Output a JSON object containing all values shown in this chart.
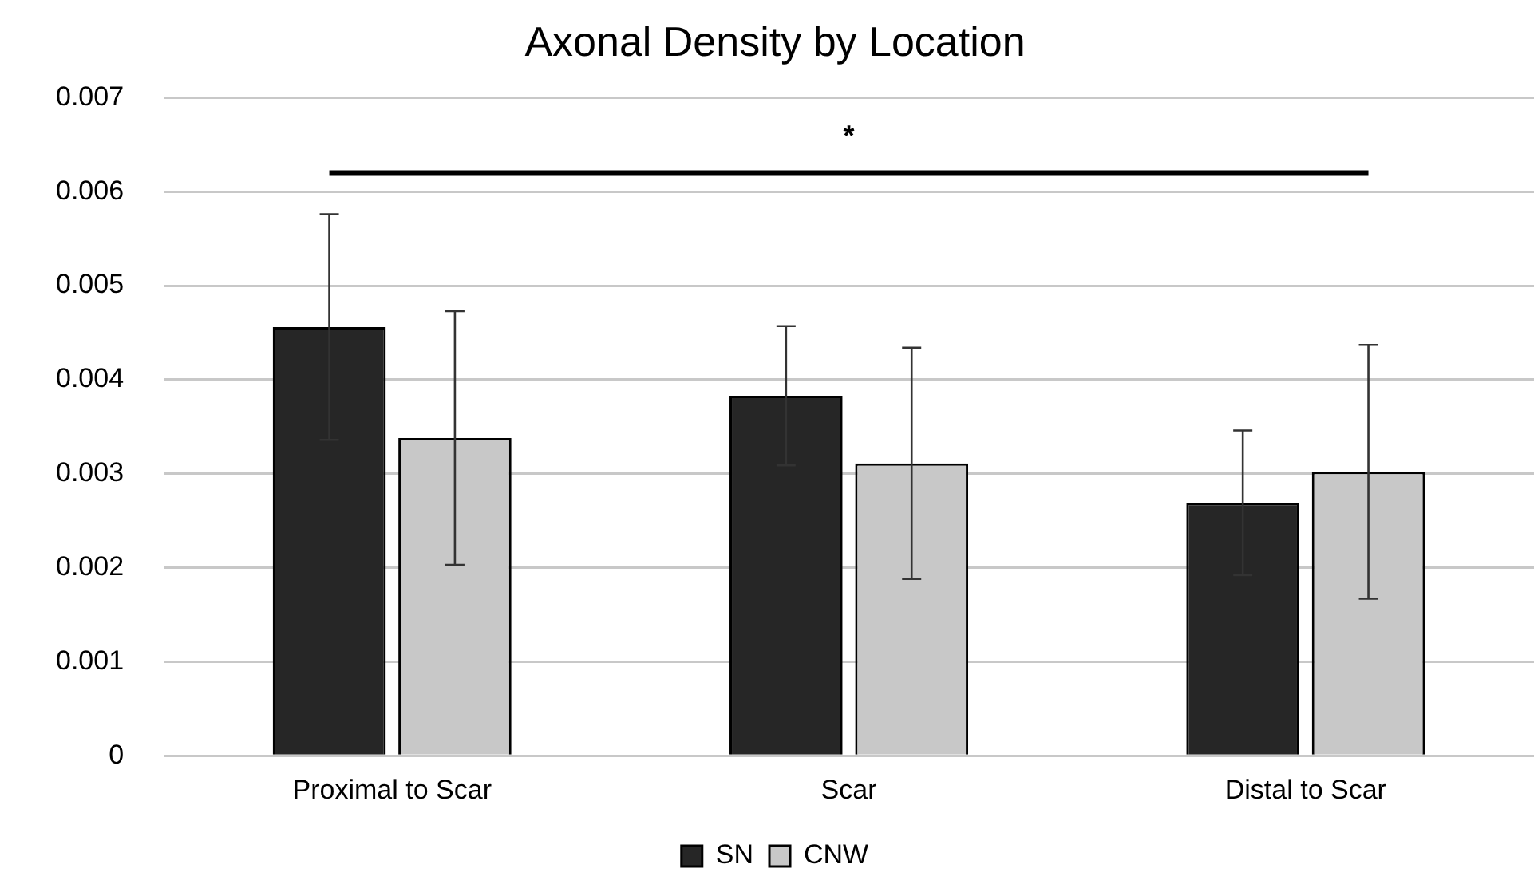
{
  "chart_data": {
    "type": "bar",
    "title": "Axonal Density by Location",
    "categories": [
      "Proximal to Scar",
      "Scar",
      "Distal to Scar"
    ],
    "series": [
      {
        "name": "SN",
        "color": "#262626",
        "values": [
          0.00456,
          0.00383,
          0.00269
        ],
        "errors": [
          0.0012,
          0.00074,
          0.00077
        ]
      },
      {
        "name": "CNW",
        "color": "#c8c8c8",
        "values": [
          0.00338,
          0.00311,
          0.00302
        ],
        "errors": [
          0.00135,
          0.00123,
          0.00135
        ]
      }
    ],
    "ylim": [
      0,
      0.007
    ],
    "yticks": [
      0,
      0.001,
      0.002,
      0.003,
      0.004,
      0.005,
      0.006,
      0.007
    ],
    "annotations": [
      "*"
    ],
    "grid": "y",
    "legend": "bottom"
  }
}
